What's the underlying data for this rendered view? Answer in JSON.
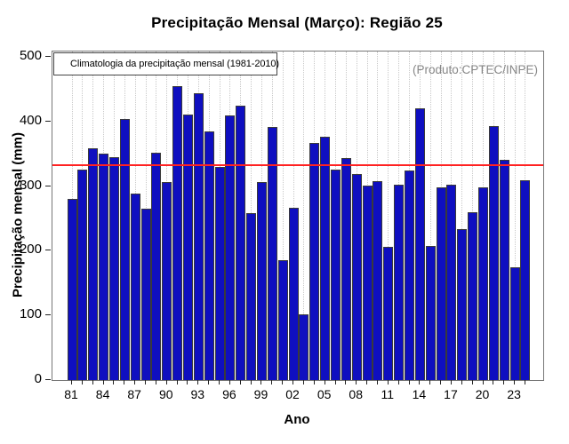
{
  "header": {
    "title": "Precipitação Mensal (Março): Região 25"
  },
  "annotations": {
    "product_label": "(Produto:CPTEC/INPE)"
  },
  "legend": {
    "label": "Climatologia da precipitação mensal (1981-2010)",
    "line_color": "#ff2222",
    "position": "top-left"
  },
  "chart_data": {
    "type": "bar",
    "title": "Precipitação Mensal (Março): Região 25",
    "xlabel": "Ano",
    "ylabel": "Precipitação mensal (mm)",
    "ylim": [
      0,
      500
    ],
    "y_ticks": [
      0,
      100,
      200,
      300,
      400,
      500
    ],
    "x_tick_labels": [
      "81",
      "84",
      "87",
      "90",
      "93",
      "96",
      "99",
      "02",
      "05",
      "08",
      "11",
      "14",
      "17",
      "20",
      "23"
    ],
    "x_label_every": 3,
    "grid": "vertical-dotted",
    "bar_color": "#0f0fc0",
    "bar_border_color": "#3a3a3a",
    "categories": [
      "81",
      "82",
      "83",
      "84",
      "85",
      "86",
      "87",
      "88",
      "89",
      "90",
      "91",
      "92",
      "93",
      "94",
      "95",
      "96",
      "97",
      "98",
      "99",
      "00",
      "01",
      "02",
      "03",
      "04",
      "05",
      "06",
      "07",
      "08",
      "09",
      "10",
      "11",
      "12",
      "13",
      "14",
      "15",
      "16",
      "17",
      "18",
      "19",
      "20",
      "21",
      "22",
      "23",
      "24"
    ],
    "values": [
      280,
      326,
      358,
      350,
      345,
      404,
      289,
      265,
      351,
      306,
      455,
      411,
      443,
      384,
      330,
      409,
      424,
      258,
      307,
      392,
      186,
      267,
      102,
      367,
      377,
      326,
      343,
      319,
      301,
      308,
      206,
      302,
      324,
      420,
      207,
      298,
      302,
      234,
      259,
      298,
      393,
      341,
      174,
      309
    ],
    "reference_line": {
      "value": 332,
      "color": "#ff2222",
      "label": "Climatologia da precipitação mensal (1981-2010)"
    }
  }
}
